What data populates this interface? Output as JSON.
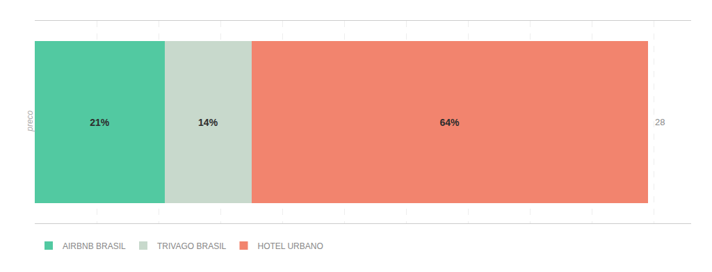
{
  "chart_data": {
    "type": "bar",
    "orientation": "horizontal",
    "stacked": true,
    "categories": [
      "preco"
    ],
    "series": [
      {
        "name": "AIRBNB BRASIL",
        "color": "#52c9a1",
        "values": [
          21
        ],
        "value_labels": [
          "21%"
        ]
      },
      {
        "name": "TRIVAGO BRASIL",
        "color": "#c8d9cc",
        "values": [
          14
        ],
        "value_labels": [
          "14%"
        ]
      },
      {
        "name": "HOTEL URBANO",
        "color": "#f2846e",
        "values": [
          64
        ],
        "value_labels": [
          "64%"
        ]
      }
    ],
    "annotations": [
      "28"
    ],
    "xlim": [
      0,
      106
    ],
    "xticks": [
      0,
      10,
      20,
      30,
      40,
      50,
      60,
      70,
      80,
      90,
      100
    ],
    "grid": true,
    "data_labels": true,
    "tick_labels": "y",
    "legend": "lower left"
  }
}
